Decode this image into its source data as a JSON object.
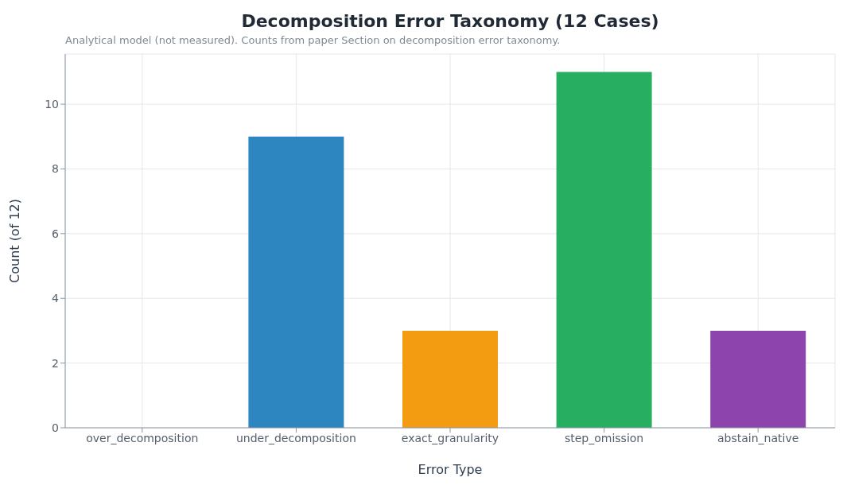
{
  "chart_data": {
    "type": "bar",
    "title": "Decomposition Error Taxonomy (12 Cases)",
    "subtitle": "Analytical model (not measured). Counts from paper Section on decomposition error taxonomy.",
    "xlabel": "Error Type",
    "ylabel": "Count (of 12)",
    "categories": [
      "over_decomposition",
      "under_decomposition",
      "exact_granularity",
      "step_omission",
      "abstain_native"
    ],
    "values": [
      0,
      9,
      3,
      11,
      3
    ],
    "colors": [
      "#e74c3c",
      "#2e86c1",
      "#f39c12",
      "#27ae60",
      "#8e44ad"
    ],
    "ylim": [
      0,
      11.55
    ],
    "yticks": [
      0,
      2,
      4,
      6,
      8,
      10
    ],
    "grid": true
  }
}
